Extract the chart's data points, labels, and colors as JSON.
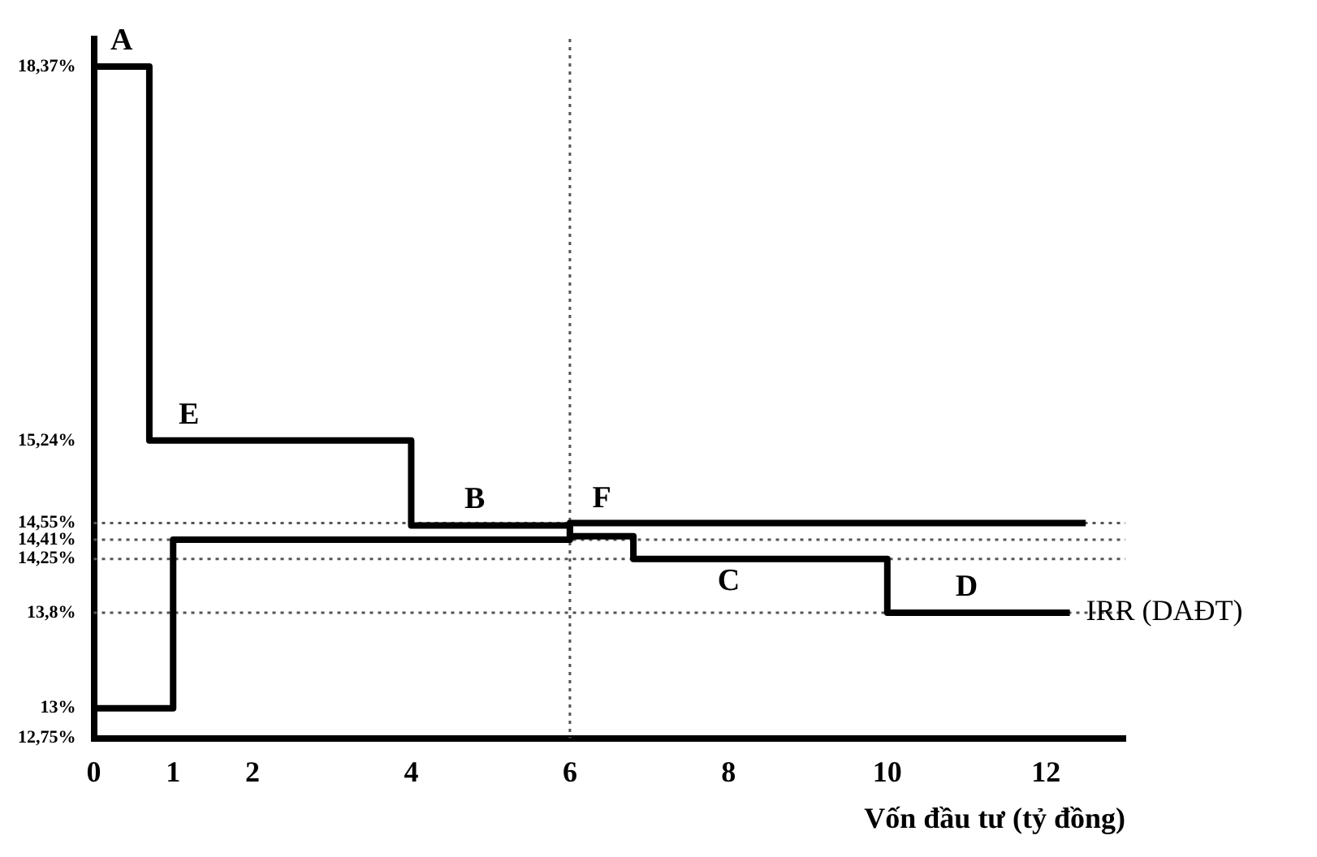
{
  "chart_data": {
    "type": "step",
    "xlabel": "Vốn đầu tư (tỷ đồng)",
    "series": [
      {
        "name": "IRR (DAĐT)",
        "color": "#000000",
        "x": [
          0,
          0.7,
          4,
          6,
          6.8,
          10,
          12.3
        ],
        "values": [
          18.37,
          15.24,
          14.53,
          14.44,
          14.25,
          13.8,
          13.8
        ]
      },
      {
        "color": "#000000",
        "x": [
          0,
          1,
          6,
          12.5
        ],
        "values": [
          13,
          14.41,
          14.55,
          14.55
        ]
      }
    ],
    "xlim": [
      0,
      13
    ],
    "xticks": [
      0,
      1,
      2,
      4,
      6,
      8,
      10,
      12
    ],
    "ylim": [
      12.75,
      18.6
    ],
    "yticks": [
      {
        "value": 12.75,
        "label": "12,75%"
      },
      {
        "value": 13,
        "label": "13%"
      },
      {
        "value": 13.8,
        "label": "13,8%"
      },
      {
        "value": 14.25,
        "label": "14,25%"
      },
      {
        "value": 14.41,
        "label": "14,41%"
      },
      {
        "value": 14.55,
        "label": "14,55%"
      },
      {
        "value": 15.24,
        "label": "15,24%"
      },
      {
        "value": 18.37,
        "label": "18,37%"
      }
    ],
    "ref_lines": [
      {
        "axis": "y",
        "value": 14.55,
        "color": "#555555",
        "line_style": "dotted"
      },
      {
        "axis": "y",
        "value": 14.41,
        "color": "#555555",
        "line_style": "dotted"
      },
      {
        "axis": "y",
        "value": 14.25,
        "color": "#555555",
        "line_style": "dotted"
      },
      {
        "axis": "y",
        "value": 13.8,
        "color": "#555555",
        "line_style": "dotted"
      },
      {
        "axis": "x",
        "value": 6,
        "color": "#555555",
        "line_style": "dotted"
      }
    ],
    "annotations": [
      {
        "text": "A",
        "x": 0.35,
        "y": 18.37
      },
      {
        "text": "E",
        "x": 1.2,
        "y": 15.24
      },
      {
        "text": "B",
        "x": 4.8,
        "y": 14.53
      },
      {
        "text": "F",
        "x": 6.4,
        "y": 14.44
      },
      {
        "text": "C",
        "x": 8,
        "y": 14.25
      },
      {
        "text": "D",
        "x": 11,
        "y": 13.8
      }
    ],
    "grid": false,
    "legend": false,
    "marker": "none",
    "line_style": "solid"
  }
}
